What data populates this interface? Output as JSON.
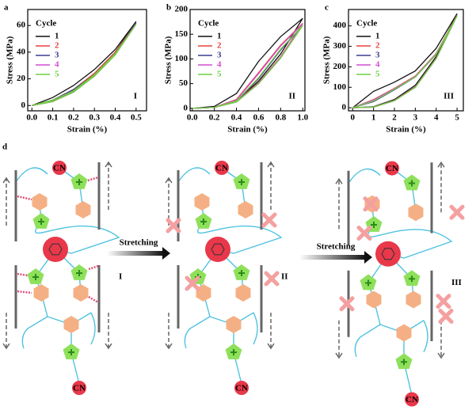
{
  "chart_data": [
    {
      "type": "line",
      "panel": "a",
      "annotation": "I",
      "legend_title": "Cycle",
      "x_label": "Strain (%)",
      "y_label": "Stress (MPa)",
      "x": [
        0,
        0.1,
        0.2,
        0.3,
        0.4,
        0.5,
        0.4,
        0.3,
        0.2,
        0.1,
        0
      ],
      "xlim": [
        -0.02,
        0.55
      ],
      "ylim": [
        -4,
        72
      ],
      "xticks": [
        {
          "value": 0,
          "label": "0.0"
        },
        0.1,
        0.2,
        0.3,
        0.4,
        0.5
      ],
      "yticks": [
        0,
        20,
        40,
        60
      ],
      "series": [
        {
          "name": "1",
          "color": "#111111",
          "values": [
            0,
            6,
            15,
            27,
            42,
            63,
            40,
            24,
            12,
            4,
            0
          ]
        },
        {
          "name": "2",
          "color": "#e8403a",
          "values": [
            0,
            4,
            12,
            24,
            40,
            62,
            39,
            23,
            11,
            3,
            0
          ]
        },
        {
          "name": "3",
          "color": "#3d3d8f",
          "values": [
            0,
            4,
            12,
            23,
            39,
            62,
            39,
            22,
            11,
            3,
            0
          ]
        },
        {
          "name": "4",
          "color": "#d24fd0",
          "values": [
            0,
            4,
            11,
            23,
            39,
            61,
            38,
            22,
            10,
            3,
            0
          ]
        },
        {
          "name": "5",
          "color": "#6fcf3f",
          "values": [
            0,
            4,
            11,
            23,
            39,
            61,
            38,
            22,
            10,
            3,
            0
          ]
        }
      ]
    },
    {
      "type": "line",
      "panel": "b",
      "annotation": "II",
      "legend_title": "Cycle",
      "x_label": "Strain (%)",
      "y_label": "Stress (MPa)",
      "x": [
        0,
        0.2,
        0.4,
        0.6,
        0.8,
        1.0,
        0.8,
        0.6,
        0.4,
        0.2,
        0
      ],
      "xlim": [
        -0.02,
        1.02
      ],
      "ylim": [
        -5,
        200
      ],
      "xticks": [
        {
          "value": 0,
          "label": "0.0"
        },
        0.2,
        0.4,
        0.6,
        0.8,
        {
          "value": 1,
          "label": "1.0"
        }
      ],
      "yticks": [
        0,
        50,
        100,
        150,
        200
      ],
      "series": [
        {
          "name": "1",
          "color": "#111111",
          "values": [
            0,
            4,
            30,
            95,
            145,
            182,
            110,
            55,
            15,
            2,
            0
          ]
        },
        {
          "name": "2",
          "color": "#e8403a",
          "values": [
            0,
            2,
            18,
            72,
            128,
            172,
            104,
            52,
            14,
            2,
            0
          ]
        },
        {
          "name": "3",
          "color": "#3d3d8f",
          "values": [
            0,
            2,
            14,
            60,
            118,
            168,
            102,
            50,
            13,
            2,
            0
          ]
        },
        {
          "name": "4",
          "color": "#d24fd0",
          "values": [
            0,
            2,
            17,
            70,
            126,
            171,
            103,
            51,
            13,
            2,
            0
          ]
        },
        {
          "name": "5",
          "color": "#6fcf3f",
          "values": [
            0,
            2,
            15,
            62,
            120,
            168,
            102,
            50,
            13,
            2,
            0
          ]
        }
      ]
    },
    {
      "type": "line",
      "panel": "c",
      "annotation": "III",
      "legend_title": "Cycle",
      "x_label": "Strain (%)",
      "y_label": "Stress (MPa)",
      "x": [
        0,
        1,
        2,
        3,
        4,
        5,
        4,
        3,
        2,
        1,
        0
      ],
      "xlim": [
        -0.2,
        5.3
      ],
      "ylim": [
        -15,
        480
      ],
      "xticks": [
        0,
        1,
        2,
        3,
        4,
        5
      ],
      "yticks": [
        0,
        100,
        200,
        300,
        400
      ],
      "series": [
        {
          "name": "1",
          "color": "#111111",
          "values": [
            0,
            80,
            125,
            180,
            290,
            460,
            250,
            110,
            40,
            5,
            0
          ]
        },
        {
          "name": "2",
          "color": "#e8403a",
          "values": [
            0,
            40,
            95,
            155,
            265,
            452,
            242,
            102,
            36,
            4,
            0
          ]
        },
        {
          "name": "3",
          "color": "#3d3d8f",
          "values": [
            0,
            30,
            88,
            150,
            260,
            450,
            240,
            100,
            35,
            3,
            0
          ]
        },
        {
          "name": "4",
          "color": "#d24fd0",
          "values": [
            0,
            38,
            93,
            153,
            263,
            451,
            241,
            101,
            35,
            3,
            0
          ]
        },
        {
          "name": "5",
          "color": "#6fcf3f",
          "values": [
            0,
            33,
            90,
            151,
            261,
            450,
            240,
            100,
            35,
            3,
            0
          ]
        }
      ]
    }
  ],
  "diagram": {
    "panel": "d",
    "arrow_labels": [
      "Stretching",
      "Stretching"
    ],
    "states": [
      "I",
      "II",
      "III"
    ],
    "end_group": "CN"
  }
}
